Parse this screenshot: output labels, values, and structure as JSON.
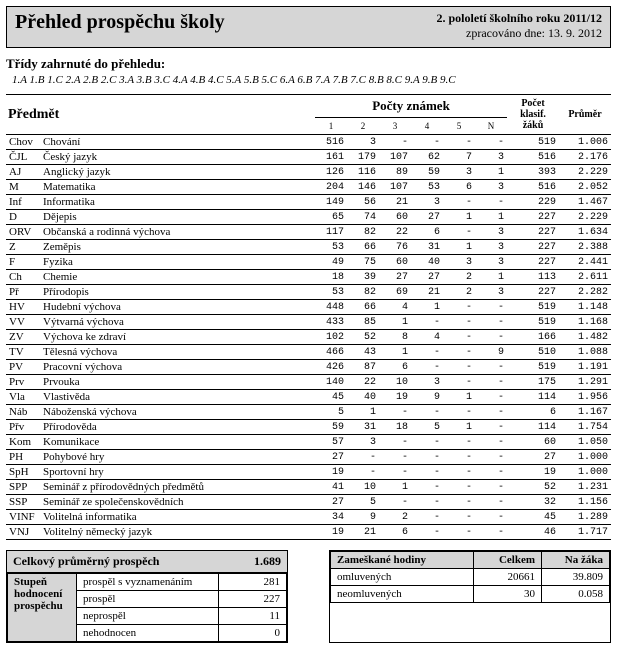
{
  "header": {
    "title": "Přehled prospěchu školy",
    "subtitle": "2. pololetí školního roku 2011/12",
    "processed": "zpracováno dne: 13. 9. 2012"
  },
  "classes_label": "Třídy zahrnuté do přehledu:",
  "classes_list": "1.A 1.B 1.C 2.A 2.B 2.C 3.A 3.B 3.C 4.A 4.B 4.C 5.A 5.B 5.C 6.A 6.B 7.A 7.B 7.C 8.B 8.C 9.A 9.B 9.C",
  "table": {
    "subject_head": "Předmět",
    "counts_head": "Počty známek",
    "grade_labels": [
      "1",
      "2",
      "3",
      "4",
      "5",
      "N"
    ],
    "pocet_head": "Počet klasif. žáků",
    "prumer_head": "Průměr",
    "rows": [
      {
        "abbr": "Chov",
        "name": "Chování",
        "g": [
          "516",
          "3",
          "-",
          "-",
          "-",
          "-"
        ],
        "count": "519",
        "avg": "1.006"
      },
      {
        "abbr": "ČJL",
        "name": "Český jazyk",
        "g": [
          "161",
          "179",
          "107",
          "62",
          "7",
          "3"
        ],
        "count": "516",
        "avg": "2.176"
      },
      {
        "abbr": "AJ",
        "name": "Anglický jazyk",
        "g": [
          "126",
          "116",
          "89",
          "59",
          "3",
          "1"
        ],
        "count": "393",
        "avg": "2.229"
      },
      {
        "abbr": "M",
        "name": "Matematika",
        "g": [
          "204",
          "146",
          "107",
          "53",
          "6",
          "3"
        ],
        "count": "516",
        "avg": "2.052"
      },
      {
        "abbr": "Inf",
        "name": "Informatika",
        "g": [
          "149",
          "56",
          "21",
          "3",
          "-",
          "-"
        ],
        "count": "229",
        "avg": "1.467"
      },
      {
        "abbr": "D",
        "name": "Dějepis",
        "g": [
          "65",
          "74",
          "60",
          "27",
          "1",
          "1"
        ],
        "count": "227",
        "avg": "2.229"
      },
      {
        "abbr": "ORV",
        "name": "Občanská a rodinná výchova",
        "g": [
          "117",
          "82",
          "22",
          "6",
          "-",
          "3"
        ],
        "count": "227",
        "avg": "1.634"
      },
      {
        "abbr": "Z",
        "name": "Zeměpis",
        "g": [
          "53",
          "66",
          "76",
          "31",
          "1",
          "3"
        ],
        "count": "227",
        "avg": "2.388"
      },
      {
        "abbr": "F",
        "name": "Fyzika",
        "g": [
          "49",
          "75",
          "60",
          "40",
          "3",
          "3"
        ],
        "count": "227",
        "avg": "2.441"
      },
      {
        "abbr": "Ch",
        "name": "Chemie",
        "g": [
          "18",
          "39",
          "27",
          "27",
          "2",
          "1"
        ],
        "count": "113",
        "avg": "2.611"
      },
      {
        "abbr": "Př",
        "name": "Přírodopis",
        "g": [
          "53",
          "82",
          "69",
          "21",
          "2",
          "3"
        ],
        "count": "227",
        "avg": "2.282"
      },
      {
        "abbr": "HV",
        "name": "Hudební výchova",
        "g": [
          "448",
          "66",
          "4",
          "1",
          "-",
          "-"
        ],
        "count": "519",
        "avg": "1.148"
      },
      {
        "abbr": "VV",
        "name": "Výtvarná výchova",
        "g": [
          "433",
          "85",
          "1",
          "-",
          "-",
          "-"
        ],
        "count": "519",
        "avg": "1.168"
      },
      {
        "abbr": "ZV",
        "name": "Výchova ke zdraví",
        "g": [
          "102",
          "52",
          "8",
          "4",
          "-",
          "-"
        ],
        "count": "166",
        "avg": "1.482"
      },
      {
        "abbr": "TV",
        "name": "Tělesná výchova",
        "g": [
          "466",
          "43",
          "1",
          "-",
          "-",
          "9"
        ],
        "count": "510",
        "avg": "1.088"
      },
      {
        "abbr": "PV",
        "name": "Pracovní výchova",
        "g": [
          "426",
          "87",
          "6",
          "-",
          "-",
          "-"
        ],
        "count": "519",
        "avg": "1.191"
      },
      {
        "abbr": "Prv",
        "name": "Prvouka",
        "g": [
          "140",
          "22",
          "10",
          "3",
          "-",
          "-"
        ],
        "count": "175",
        "avg": "1.291"
      },
      {
        "abbr": "Vla",
        "name": "Vlastivěda",
        "g": [
          "45",
          "40",
          "19",
          "9",
          "1",
          "-"
        ],
        "count": "114",
        "avg": "1.956"
      },
      {
        "abbr": "Náb",
        "name": "Náboženská výchova",
        "g": [
          "5",
          "1",
          "-",
          "-",
          "-",
          "-"
        ],
        "count": "6",
        "avg": "1.167"
      },
      {
        "abbr": "Přv",
        "name": "Přírodověda",
        "g": [
          "59",
          "31",
          "18",
          "5",
          "1",
          "-"
        ],
        "count": "114",
        "avg": "1.754"
      },
      {
        "abbr": "Kom",
        "name": "Komunikace",
        "g": [
          "57",
          "3",
          "-",
          "-",
          "-",
          "-"
        ],
        "count": "60",
        "avg": "1.050"
      },
      {
        "abbr": "PH",
        "name": "Pohybové hry",
        "g": [
          "27",
          "-",
          "-",
          "-",
          "-",
          "-"
        ],
        "count": "27",
        "avg": "1.000"
      },
      {
        "abbr": "SpH",
        "name": "Sportovní hry",
        "g": [
          "19",
          "-",
          "-",
          "-",
          "-",
          "-"
        ],
        "count": "19",
        "avg": "1.000"
      },
      {
        "abbr": "SPP",
        "name": "Seminář z přírodovědných předmětů",
        "g": [
          "41",
          "10",
          "1",
          "-",
          "-",
          "-"
        ],
        "count": "52",
        "avg": "1.231"
      },
      {
        "abbr": "SSP",
        "name": "Seminář ze společenskovědních",
        "g": [
          "27",
          "5",
          "-",
          "-",
          "-",
          "-"
        ],
        "count": "32",
        "avg": "1.156"
      },
      {
        "abbr": "VINF",
        "name": "Volitelná informatika",
        "g": [
          "34",
          "9",
          "2",
          "-",
          "-",
          "-"
        ],
        "count": "45",
        "avg": "1.289"
      },
      {
        "abbr": "VNJ",
        "name": "Volitelný německý jazyk",
        "g": [
          "19",
          "21",
          "6",
          "-",
          "-",
          "-"
        ],
        "count": "46",
        "avg": "1.717"
      }
    ]
  },
  "left_box": {
    "title": "Celkový průměrný prospěch",
    "value": "1.689",
    "side_label": "Stupeň hodnocení prospěchu",
    "rows": [
      {
        "label": "prospěl s vyznamenáním",
        "val": "281"
      },
      {
        "label": "prospěl",
        "val": "227"
      },
      {
        "label": "neprospěl",
        "val": "11"
      },
      {
        "label": "nehodnocen",
        "val": "0"
      }
    ]
  },
  "right_box": {
    "head1": "Zameškané hodiny",
    "head2": "Celkem",
    "head3": "Na žáka",
    "rows": [
      {
        "label": "omluvených",
        "c": "20661",
        "p": "39.809"
      },
      {
        "label": "neomluvených",
        "c": "30",
        "p": "0.058"
      }
    ]
  }
}
